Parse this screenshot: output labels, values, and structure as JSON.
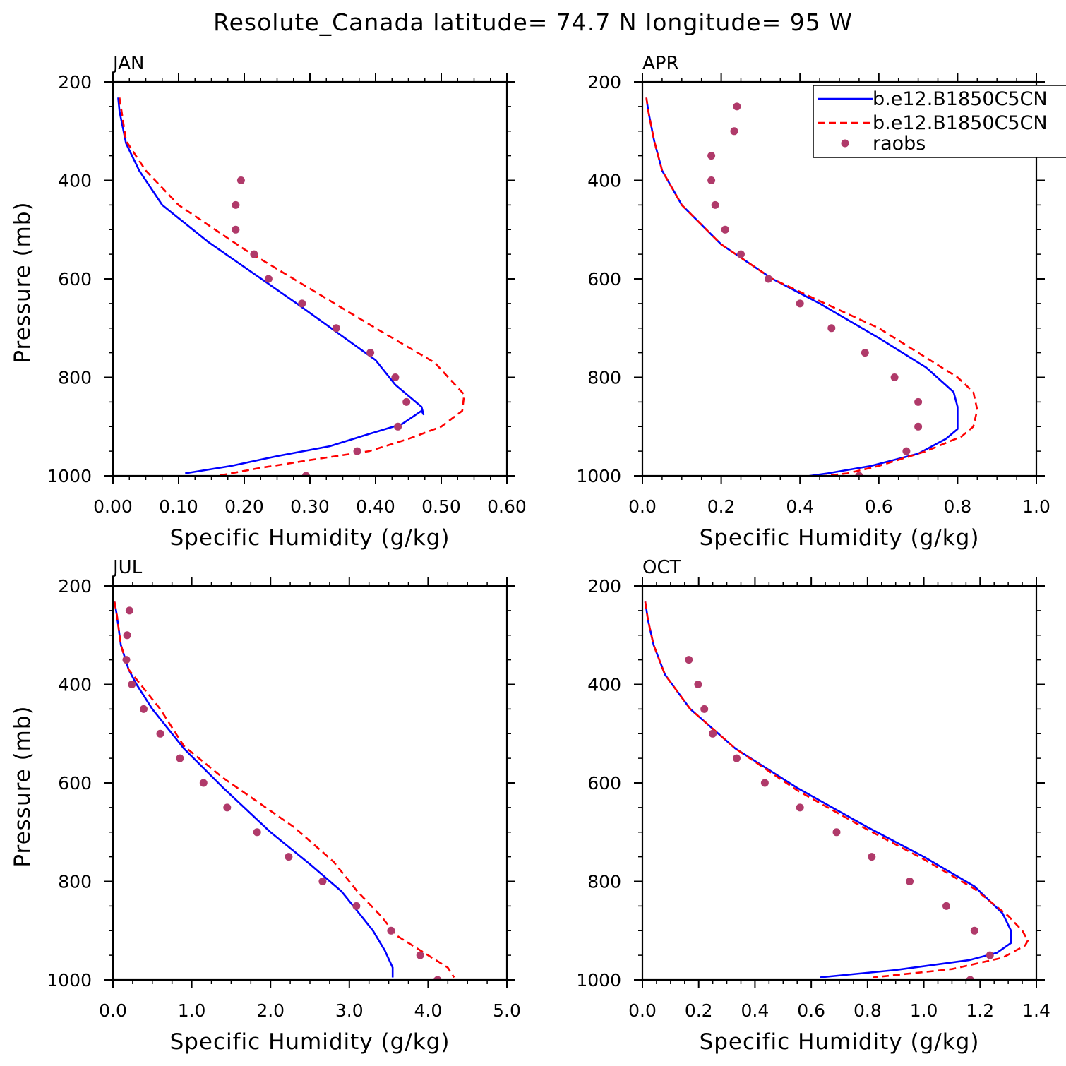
{
  "title": "Resolute_Canada  latitude= 74.7 N longitude= 95 W",
  "colors": {
    "model1": "#0000ff",
    "model2": "#ff0000",
    "raobs": "#b03a6a"
  },
  "legend": {
    "placement": "top-right of APR panel",
    "entries": [
      "b.e12.B1850C5CN",
      "b.e12.B1850C5CN",
      "raobs"
    ]
  },
  "chart_data": [
    {
      "type": "line",
      "panel": "JAN",
      "xlabel": "Specific Humidity (g/kg)",
      "ylabel": "Pressure (mb)",
      "xlim": [
        0,
        0.6
      ],
      "ylim": [
        200,
        1000
      ],
      "y_inverted": true,
      "xticks": [
        "0.00",
        "0.10",
        "0.20",
        "0.30",
        "0.40",
        "0.50",
        "0.60"
      ],
      "yticks": [
        "200",
        "400",
        "600",
        "800",
        "1000"
      ],
      "series": [
        {
          "name": "b.e12.B1850C5CN",
          "style": "solid",
          "x": [
            0.008,
            0.01,
            0.02,
            0.04,
            0.075,
            0.145,
            0.28,
            0.4,
            0.43,
            0.47,
            0.473,
            0.47,
            0.44,
            0.39,
            0.33,
            0.25,
            0.18,
            0.11
          ],
          "y": [
            232,
            260,
            325,
            380,
            450,
            525,
            650,
            765,
            815,
            860,
            875,
            868,
            895,
            915,
            940,
            960,
            980,
            995
          ]
        },
        {
          "name": "b.e12.B1850C5CN",
          "style": "dashed",
          "x": [
            0.01,
            0.02,
            0.05,
            0.1,
            0.2,
            0.3,
            0.4,
            0.49,
            0.535,
            0.532,
            0.5,
            0.45,
            0.39,
            0.3,
            0.22,
            0.16
          ],
          "y": [
            232,
            320,
            380,
            450,
            540,
            620,
            700,
            770,
            835,
            868,
            900,
            925,
            950,
            968,
            985,
            1000
          ]
        },
        {
          "name": "raobs",
          "style": "dots",
          "x": [
            0.195,
            0.187,
            0.187,
            0.215,
            0.237,
            0.288,
            0.34,
            0.392,
            0.43,
            0.447,
            0.434,
            0.372,
            0.294
          ],
          "y": [
            400,
            450,
            500,
            550,
            600,
            650,
            700,
            750,
            800,
            850,
            900,
            950,
            1000
          ]
        }
      ]
    },
    {
      "type": "line",
      "panel": "APR",
      "xlabel": "Specific Humidity (g/kg)",
      "ylabel": "",
      "xlim": [
        0,
        1.0
      ],
      "ylim": [
        200,
        1000
      ],
      "y_inverted": true,
      "xticks": [
        "0.0",
        "0.2",
        "0.4",
        "0.6",
        "0.8",
        "1.0"
      ],
      "yticks": [
        "200",
        "400",
        "600",
        "800",
        "1000"
      ],
      "series": [
        {
          "name": "b.e12.B1850C5CN",
          "style": "solid",
          "x": [
            0.01,
            0.015,
            0.03,
            0.05,
            0.1,
            0.2,
            0.33,
            0.45,
            0.6,
            0.72,
            0.79,
            0.8,
            0.8,
            0.77,
            0.7,
            0.58,
            0.47,
            0.4
          ],
          "y": [
            232,
            260,
            320,
            380,
            450,
            530,
            600,
            650,
            720,
            780,
            830,
            860,
            905,
            925,
            955,
            980,
            995,
            1003
          ]
        },
        {
          "name": "b.e12.B1850C5CN",
          "style": "dashed",
          "x": [
            0.01,
            0.015,
            0.03,
            0.05,
            0.1,
            0.2,
            0.33,
            0.45,
            0.6,
            0.72,
            0.8,
            0.84,
            0.85,
            0.84,
            0.81,
            0.72,
            0.6,
            0.52,
            0.41
          ],
          "y": [
            232,
            260,
            320,
            380,
            450,
            530,
            600,
            645,
            700,
            760,
            800,
            830,
            866,
            900,
            920,
            950,
            980,
            995,
            1005
          ]
        },
        {
          "name": "raobs",
          "style": "dots",
          "x": [
            0.24,
            0.233,
            0.175,
            0.175,
            0.185,
            0.21,
            0.25,
            0.32,
            0.4,
            0.48,
            0.565,
            0.64,
            0.7,
            0.7,
            0.67,
            0.55
          ],
          "y": [
            250,
            300,
            350,
            400,
            450,
            500,
            550,
            600,
            650,
            700,
            750,
            800,
            850,
            900,
            950,
            1000
          ]
        }
      ]
    },
    {
      "type": "line",
      "panel": "JUL",
      "xlabel": "Specific Humidity (g/kg)",
      "ylabel": "Pressure (mb)",
      "xlim": [
        0,
        5.0
      ],
      "ylim": [
        200,
        1000
      ],
      "y_inverted": true,
      "xticks": [
        "0.0",
        "1.0",
        "2.0",
        "3.0",
        "4.0",
        "5.0"
      ],
      "yticks": [
        "200",
        "400",
        "600",
        "800",
        "1000"
      ],
      "series": [
        {
          "name": "b.e12.B1850C5CN",
          "style": "solid",
          "x": [
            0.02,
            0.05,
            0.1,
            0.2,
            0.3,
            0.5,
            0.9,
            1.4,
            2.0,
            2.5,
            2.9,
            3.1,
            3.3,
            3.45,
            3.55,
            3.55
          ],
          "y": [
            232,
            260,
            320,
            370,
            400,
            450,
            530,
            610,
            700,
            765,
            820,
            860,
            900,
            940,
            975,
            995
          ]
        },
        {
          "name": "b.e12.B1850C5CN",
          "style": "dashed",
          "x": [
            0.02,
            0.05,
            0.1,
            0.2,
            0.35,
            0.6,
            0.9,
            1.4,
            2.3,
            2.8,
            3.1,
            3.4,
            3.6,
            4.0,
            4.25,
            4.33
          ],
          "y": [
            232,
            260,
            320,
            370,
            400,
            450,
            525,
            590,
            690,
            760,
            820,
            870,
            910,
            950,
            975,
            995
          ]
        },
        {
          "name": "raobs",
          "style": "dots",
          "x": [
            0.21,
            0.18,
            0.17,
            0.24,
            0.39,
            0.6,
            0.85,
            1.15,
            1.45,
            1.83,
            2.23,
            2.66,
            3.09,
            3.53,
            3.9,
            4.12
          ],
          "y": [
            250,
            300,
            350,
            400,
            450,
            500,
            550,
            600,
            650,
            700,
            750,
            800,
            850,
            900,
            950,
            1000
          ]
        }
      ]
    },
    {
      "type": "line",
      "panel": "OCT",
      "xlabel": "Specific Humidity (g/kg)",
      "ylabel": "",
      "xlim": [
        0,
        1.4
      ],
      "ylim": [
        200,
        1000
      ],
      "y_inverted": true,
      "xticks": [
        "0.0",
        "0.2",
        "0.4",
        "0.6",
        "0.8",
        "1.0",
        "1.2",
        "1.4"
      ],
      "yticks": [
        "200",
        "400",
        "600",
        "800",
        "1000"
      ],
      "series": [
        {
          "name": "b.e12.B1850C5CN",
          "style": "solid",
          "x": [
            0.01,
            0.02,
            0.04,
            0.08,
            0.17,
            0.33,
            0.55,
            0.8,
            1.0,
            1.18,
            1.28,
            1.31,
            1.31,
            1.26,
            1.16,
            0.9,
            0.63
          ],
          "y": [
            232,
            270,
            320,
            380,
            450,
            530,
            610,
            690,
            750,
            810,
            865,
            900,
            925,
            945,
            960,
            980,
            995
          ]
        },
        {
          "name": "b.e12.B1850C5CN",
          "style": "dashed",
          "x": [
            0.01,
            0.02,
            0.04,
            0.08,
            0.17,
            0.33,
            0.55,
            0.8,
            1.0,
            1.18,
            1.3,
            1.35,
            1.37,
            1.36,
            1.28,
            1.1,
            0.82
          ],
          "y": [
            232,
            270,
            320,
            380,
            450,
            530,
            615,
            695,
            755,
            815,
            870,
            900,
            920,
            930,
            955,
            978,
            995
          ]
        },
        {
          "name": "raobs",
          "style": "dots",
          "x": [
            0.165,
            0.198,
            0.22,
            0.25,
            0.335,
            0.435,
            0.56,
            0.69,
            0.815,
            0.95,
            1.08,
            1.18,
            1.235,
            1.165
          ],
          "y": [
            350,
            400,
            450,
            500,
            550,
            600,
            650,
            700,
            750,
            800,
            850,
            900,
            950,
            1000
          ]
        }
      ]
    }
  ]
}
